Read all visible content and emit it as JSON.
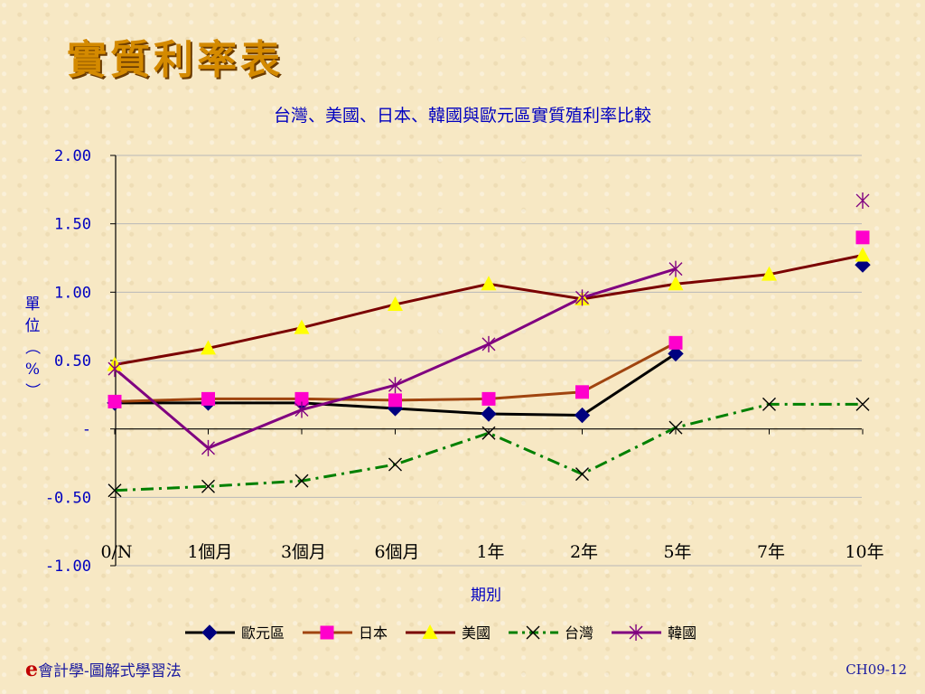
{
  "slide": {
    "title": "實質利率表",
    "footer_prefix": "e",
    "footer_left": "會計學-圖解式學習法",
    "footer_right": "CH09-12"
  },
  "chart_data": {
    "type": "line",
    "title": "台灣、美國、日本、韓國與歐元區實質殖利率比較",
    "xlabel": "期別",
    "ylabel": "單位（%）",
    "categories": [
      "0/N",
      "1個月",
      "3個月",
      "6個月",
      "1年",
      "2年",
      "5年",
      "7年",
      "10年"
    ],
    "y_ticks": [
      "2.00",
      "1.50",
      "1.00",
      "0.50",
      "-",
      "-0.50",
      "-1.00"
    ],
    "ylim": [
      -1.0,
      2.0
    ],
    "grid": true,
    "legend_position": "bottom",
    "series": [
      {
        "name": "歐元區",
        "color": "#000000",
        "marker_color": "#00007f",
        "marker": "diamond",
        "dash": "solid",
        "values": [
          0.19,
          0.19,
          0.19,
          0.15,
          0.11,
          0.1,
          0.55,
          null,
          1.2
        ]
      },
      {
        "name": "日本",
        "color": "#a0440f",
        "marker_color": "#ff00cc",
        "marker": "square",
        "dash": "solid",
        "values": [
          0.2,
          0.22,
          0.22,
          0.21,
          0.22,
          0.27,
          0.63,
          null,
          1.4
        ]
      },
      {
        "name": "美國",
        "color": "#7a0000",
        "marker_color": "#ffff00",
        "marker": "triangle",
        "dash": "solid",
        "values": [
          0.47,
          0.59,
          0.74,
          0.91,
          1.06,
          0.95,
          1.06,
          1.13,
          1.27
        ]
      },
      {
        "name": "台灣",
        "color": "#008000",
        "marker_color": "#000000",
        "marker": "x",
        "dash": "dashdot",
        "values": [
          -0.45,
          -0.42,
          -0.38,
          -0.26,
          -0.03,
          -0.33,
          0.01,
          0.18,
          0.18
        ]
      },
      {
        "name": "韓國",
        "color": "#800080",
        "marker_color": "#800080",
        "marker": "star",
        "dash": "solid",
        "values": [
          0.44,
          -0.14,
          0.14,
          0.32,
          0.62,
          0.96,
          1.17,
          null,
          1.67
        ]
      }
    ]
  }
}
